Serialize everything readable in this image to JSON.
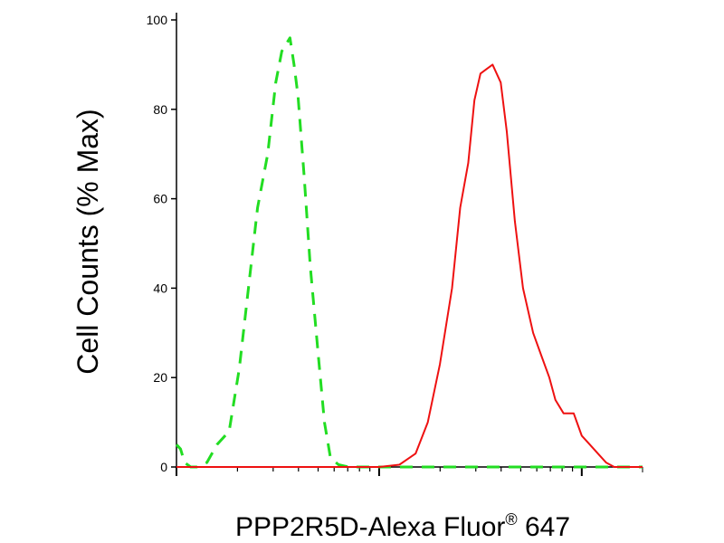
{
  "chart_data": {
    "type": "line",
    "title": "",
    "ylabel": "Cell Counts (% Max)",
    "xlabel": {
      "main": "PPP2R5D-Alexa Fluor",
      "superscript": "®",
      "suffix": " 647"
    },
    "ylim": [
      0,
      100
    ],
    "yticks": [
      "0",
      "20",
      "40",
      "60",
      "80",
      "100"
    ],
    "ytick_values": [
      0,
      20,
      40,
      60,
      80,
      100
    ],
    "xscale": "log",
    "xlim_decades": [
      0,
      2.3
    ],
    "grid": false,
    "legend": "none",
    "series": [
      {
        "color": "#22dd22",
        "dash": true,
        "x": [
          0.0,
          0.02,
          0.04,
          0.07,
          0.1,
          0.15,
          0.2,
          0.26,
          0.31,
          0.35,
          0.4,
          0.45,
          0.49,
          0.52,
          0.56,
          0.58,
          0.6,
          0.63,
          0.66,
          0.7,
          0.73,
          0.76,
          0.8,
          0.85,
          0.92,
          1.0,
          1.2,
          1.6,
          2.3
        ],
        "y": [
          5,
          4,
          1,
          0,
          0,
          1,
          5,
          8,
          22,
          38,
          58,
          70,
          86,
          93,
          96,
          90,
          83,
          65,
          45,
          25,
          10,
          2,
          0.5,
          0,
          0,
          0,
          0,
          0,
          0
        ]
      },
      {
        "color": "#ee1111",
        "dash": false,
        "x": [
          0.0,
          0.5,
          1.0,
          1.1,
          1.18,
          1.24,
          1.3,
          1.36,
          1.4,
          1.44,
          1.47,
          1.5,
          1.53,
          1.56,
          1.6,
          1.63,
          1.67,
          1.71,
          1.76,
          1.8,
          1.84,
          1.87,
          1.91,
          1.96,
          2.0,
          2.04,
          2.08,
          2.12,
          2.16,
          2.3
        ],
        "y": [
          0,
          0,
          0,
          0.5,
          3,
          10,
          23,
          40,
          58,
          68,
          82,
          88,
          89,
          90,
          86,
          75,
          55,
          40,
          30,
          25,
          20,
          15,
          12,
          12,
          7,
          5,
          3,
          1,
          0,
          0
        ]
      }
    ]
  }
}
